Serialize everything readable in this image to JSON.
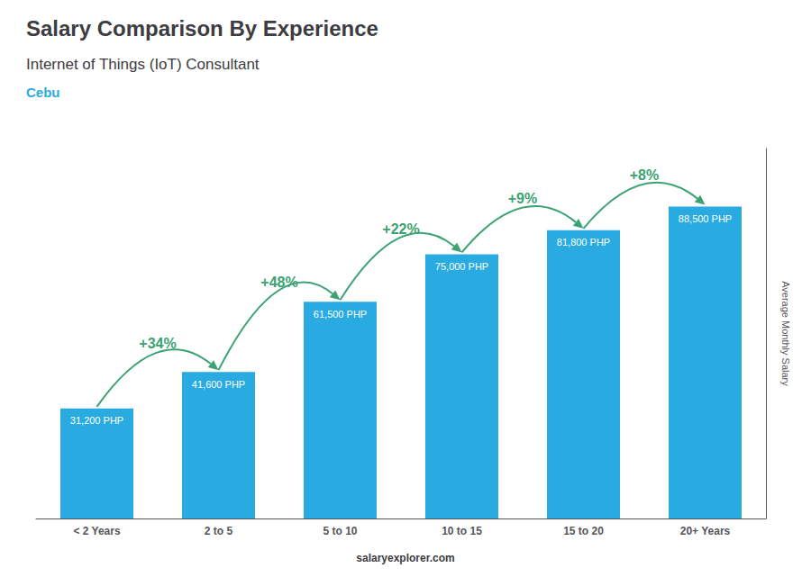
{
  "chart_data": {
    "type": "bar",
    "title": "Salary Comparison By Experience",
    "subtitle": "Internet of Things (IoT) Consultant",
    "city": "Cebu",
    "footer": "salaryexplorer.com",
    "ylabel": "Average Monthly Salary",
    "categories": [
      "< 2 Years",
      "2 to 5",
      "5 to 10",
      "10 to 15",
      "15 to 20",
      "20+ Years"
    ],
    "values": [
      31200,
      41600,
      61500,
      75000,
      81800,
      88500
    ],
    "value_labels": [
      "31,200 PHP",
      "41,600 PHP",
      "61,500 PHP",
      "75,000 PHP",
      "81,800 PHP",
      "88,500 PHP"
    ],
    "data_labels": true,
    "annotations": [
      "+34%",
      "+48%",
      "+22%",
      "+9%",
      "+8%"
    ],
    "color": "#29ABE2",
    "ylim": [
      0,
      105000
    ],
    "tick_labels": "x",
    "grid": false
  }
}
